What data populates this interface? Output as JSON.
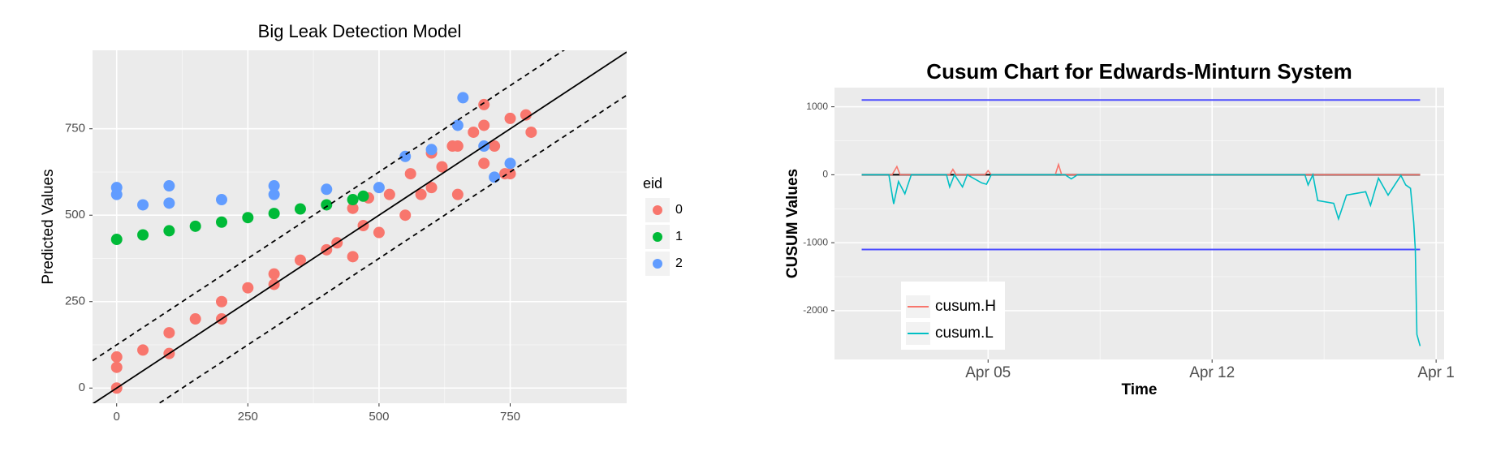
{
  "chart_data": [
    {
      "type": "scatter",
      "title": "Big Leak Detection Model",
      "y_label": "Predicted Values",
      "legend_title": "eid",
      "xlim": [
        -46,
        972
      ],
      "ylim": [
        -44,
        977
      ],
      "xticks": [
        0,
        250,
        500,
        750
      ],
      "yticks": [
        0,
        250,
        500,
        750
      ],
      "grid": true,
      "ref_lines": [
        {
          "slope": 1,
          "intercept": 0,
          "dashed": false
        },
        {
          "slope": 1,
          "intercept": 125,
          "dashed": true
        },
        {
          "slope": 1,
          "intercept": -125,
          "dashed": true
        }
      ],
      "series": [
        {
          "name": "0",
          "color": "#F8766D",
          "x": [
            0,
            0,
            0,
            50,
            100,
            100,
            150,
            200,
            200,
            250,
            300,
            300,
            350,
            400,
            420,
            450,
            450,
            470,
            480,
            500,
            520,
            550,
            560,
            580,
            600,
            600,
            620,
            640,
            650,
            650,
            680,
            700,
            700,
            720,
            740,
            750,
            750,
            780,
            790,
            700
          ],
          "values": [
            0,
            60,
            90,
            110,
            100,
            160,
            200,
            200,
            250,
            290,
            300,
            330,
            370,
            400,
            420,
            380,
            520,
            470,
            550,
            450,
            560,
            500,
            620,
            560,
            580,
            680,
            640,
            700,
            700,
            560,
            740,
            650,
            760,
            700,
            620,
            780,
            620,
            790,
            740,
            820
          ]
        },
        {
          "name": "1",
          "color": "#00BA38",
          "x": [
            0,
            50,
            100,
            150,
            200,
            250,
            300,
            350,
            400,
            450,
            470
          ],
          "values": [
            430,
            443,
            455,
            468,
            480,
            493,
            505,
            518,
            530,
            545,
            555
          ]
        },
        {
          "name": "2",
          "color": "#619CFF",
          "x": [
            0,
            0,
            50,
            100,
            200,
            300,
            400,
            500,
            100,
            300,
            550,
            600,
            650,
            660,
            700,
            720,
            750
          ],
          "values": [
            580,
            560,
            530,
            535,
            545,
            560,
            575,
            580,
            585,
            585,
            670,
            690,
            760,
            840,
            700,
            610,
            650
          ]
        }
      ]
    },
    {
      "type": "line",
      "title": "Cusum Chart for Edwards-Minturn System",
      "x_label": "Time",
      "y_label": "CUSUM Values",
      "legend_corner": "bottom-left",
      "xlim": [
        0.2,
        19.25
      ],
      "ylim": [
        -2718,
        1282
      ],
      "xticks": [
        {
          "value": 5,
          "label": "Apr 05"
        },
        {
          "value": 12,
          "label": "Apr 12"
        },
        {
          "value": 19,
          "label": "Apr 1"
        }
      ],
      "yticks": [
        1000,
        0,
        -1000,
        -2000
      ],
      "grid": true,
      "hlines": [
        {
          "value": 1100,
          "color": "#4d4dff"
        },
        {
          "value": 0,
          "color": "#000000"
        },
        {
          "value": -1100,
          "color": "#4d4dff"
        }
      ],
      "series": [
        {
          "name": "cusum.H",
          "color": "#F8766D",
          "x": [
            1.05,
            2.0,
            2.15,
            2.25,
            2.4,
            3.8,
            3.9,
            4.0,
            4.9,
            5.0,
            5.1,
            7.1,
            7.2,
            7.3,
            10,
            15,
            18.5
          ],
          "values": [
            0,
            0,
            120,
            0,
            0,
            0,
            80,
            0,
            0,
            60,
            0,
            0,
            150,
            0,
            0,
            0,
            0
          ]
        },
        {
          "name": "cusum.L",
          "color": "#00BFC4",
          "x": [
            1.05,
            1.9,
            2.05,
            2.2,
            2.4,
            2.6,
            3.7,
            3.8,
            3.95,
            4.2,
            4.35,
            4.8,
            4.95,
            5.1,
            7.4,
            7.6,
            7.8,
            14.9,
            15.0,
            15.15,
            15.3,
            15.8,
            15.95,
            16.2,
            16.8,
            16.95,
            17.2,
            17.5,
            17.9,
            18.05,
            18.2,
            18.3,
            18.35,
            18.4,
            18.5
          ],
          "values": [
            0,
            0,
            -430,
            -100,
            -280,
            0,
            0,
            -180,
            0,
            -180,
            0,
            -120,
            -140,
            0,
            0,
            -60,
            0,
            0,
            -150,
            0,
            -380,
            -420,
            -650,
            -300,
            -250,
            -450,
            -50,
            -300,
            -10,
            -150,
            -200,
            -700,
            -1100,
            -2350,
            -2520
          ]
        }
      ]
    }
  ]
}
